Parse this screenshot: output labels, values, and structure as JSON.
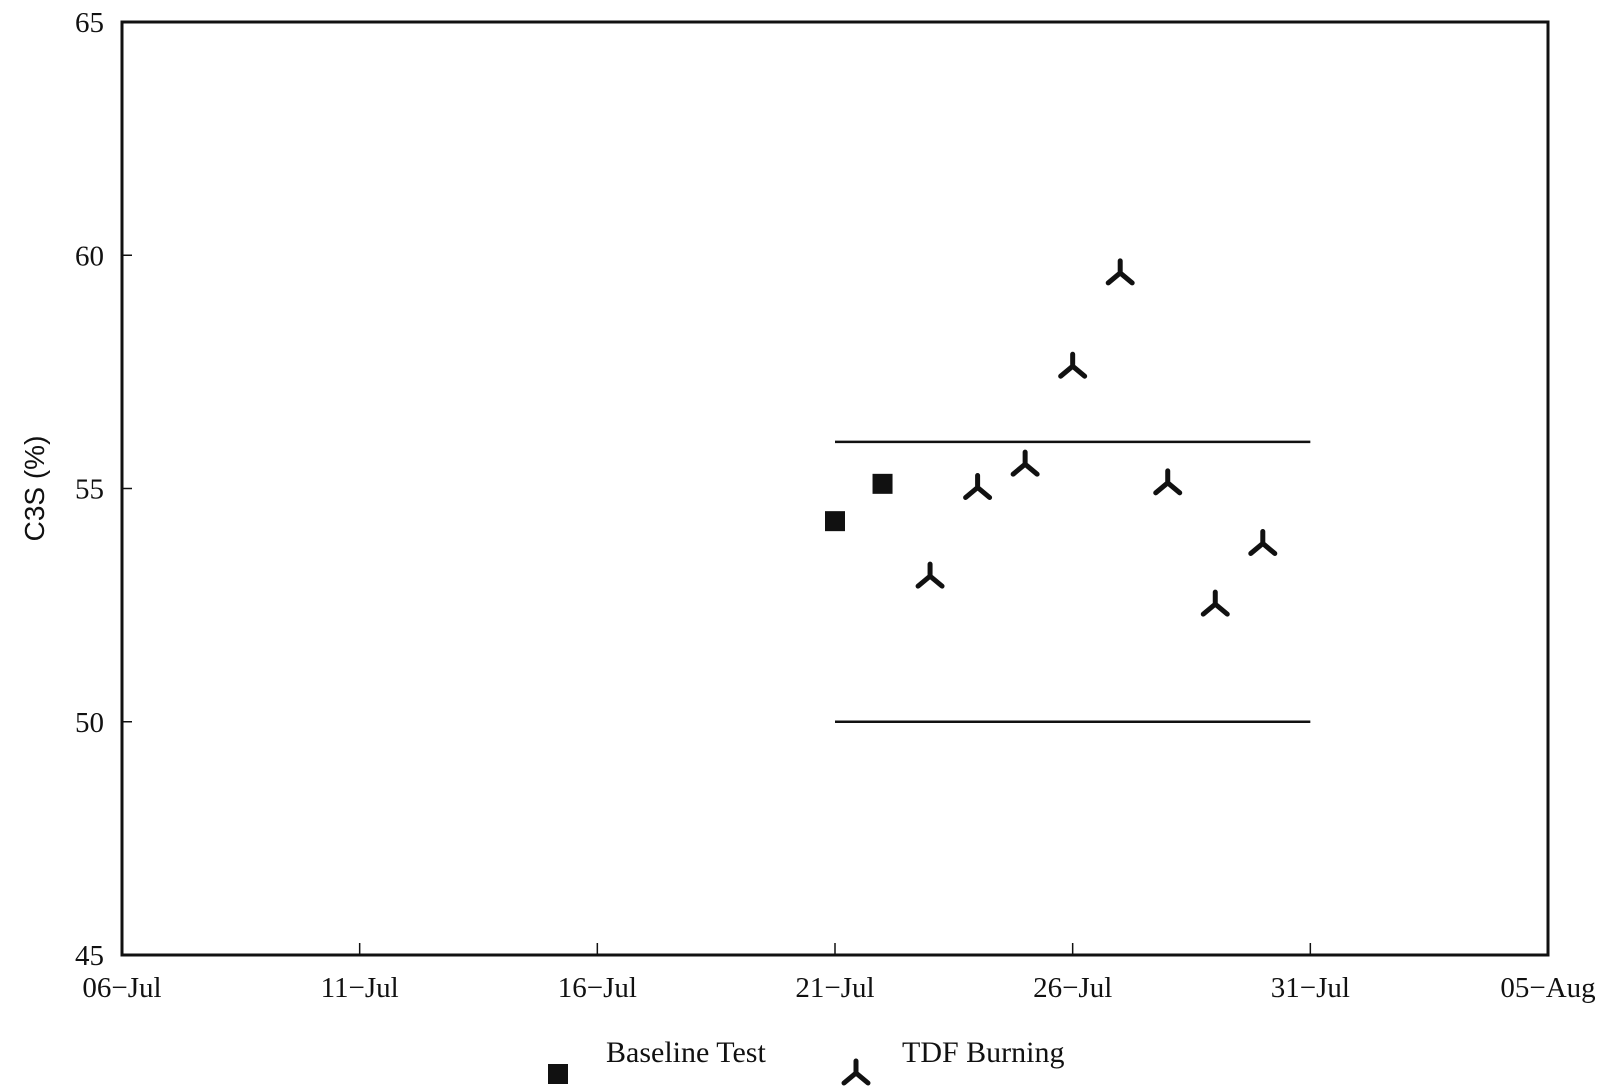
{
  "chart_data": {
    "type": "scatter",
    "ylabel": "C3S (%)",
    "xlabel": "",
    "ylim": [
      45,
      65
    ],
    "xlim": [
      "2000-07-06",
      "2000-08-05"
    ],
    "y_ticks": [
      "45",
      "50",
      "55",
      "60",
      "65"
    ],
    "x_ticks": [
      {
        "date": "2000-07-06",
        "label": "06−Jul"
      },
      {
        "date": "2000-07-11",
        "label": "11−Jul"
      },
      {
        "date": "2000-07-16",
        "label": "16−Jul"
      },
      {
        "date": "2000-07-21",
        "label": "21−Jul"
      },
      {
        "date": "2000-07-26",
        "label": "26−Jul"
      },
      {
        "date": "2000-07-31",
        "label": "31−Jul"
      },
      {
        "date": "2000-08-05",
        "label": "05−Aug"
      }
    ],
    "grid": false,
    "legend_position": "bottom",
    "series": [
      {
        "name": "Baseline Test",
        "marker": "square",
        "points": [
          {
            "x": "2000-07-21",
            "y": 54.3
          },
          {
            "x": "2000-07-22",
            "y": 55.1
          }
        ]
      },
      {
        "name": "TDF Burning",
        "marker": "tri",
        "points": [
          {
            "x": "2000-07-23",
            "y": 53.1
          },
          {
            "x": "2000-07-24",
            "y": 55.0
          },
          {
            "x": "2000-07-25",
            "y": 55.5
          },
          {
            "x": "2000-07-26",
            "y": 57.6
          },
          {
            "x": "2000-07-27",
            "y": 59.6
          },
          {
            "x": "2000-07-28",
            "y": 55.1
          },
          {
            "x": "2000-07-29",
            "y": 52.5
          },
          {
            "x": "2000-07-30",
            "y": 53.8
          }
        ]
      }
    ],
    "reference_lines": [
      {
        "y": 56,
        "x_start": "2000-07-21",
        "x_end": "2000-07-31"
      },
      {
        "y": 50,
        "x_start": "2000-07-21",
        "x_end": "2000-07-31"
      }
    ],
    "colors": {
      "ink": "#111111",
      "background": "#ffffff"
    }
  }
}
